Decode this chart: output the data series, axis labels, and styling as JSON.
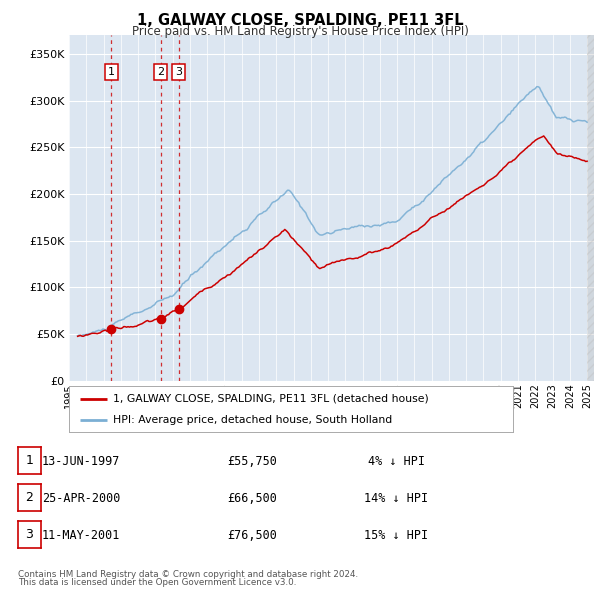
{
  "title": "1, GALWAY CLOSE, SPALDING, PE11 3FL",
  "subtitle": "Price paid vs. HM Land Registry's House Price Index (HPI)",
  "legend_line1": "1, GALWAY CLOSE, SPALDING, PE11 3FL (detached house)",
  "legend_line2": "HPI: Average price, detached house, South Holland",
  "transactions": [
    {
      "num": 1,
      "date": "13-JUN-1997",
      "price": 55750,
      "pct": "4%",
      "dir": "↓"
    },
    {
      "num": 2,
      "date": "25-APR-2000",
      "price": 66500,
      "pct": "14%",
      "dir": "↓"
    },
    {
      "num": 3,
      "date": "11-MAY-2001",
      "price": 76500,
      "pct": "15%",
      "dir": "↓"
    }
  ],
  "footer1": "Contains HM Land Registry data © Crown copyright and database right 2024.",
  "footer2": "This data is licensed under the Open Government Licence v3.0.",
  "hpi_color": "#7bafd4",
  "price_color": "#cc0000",
  "vline_color": "#cc0000",
  "plot_bg": "#dce6f1",
  "grid_color": "#ffffff",
  "ylim": [
    0,
    370000
  ],
  "yticks": [
    0,
    50000,
    100000,
    150000,
    200000,
    250000,
    300000,
    350000
  ],
  "xstart": 1995.4,
  "xend": 2025.4,
  "xticks": [
    1995,
    1996,
    1997,
    1998,
    1999,
    2000,
    2001,
    2002,
    2003,
    2004,
    2005,
    2006,
    2007,
    2008,
    2009,
    2010,
    2011,
    2012,
    2013,
    2014,
    2015,
    2016,
    2017,
    2018,
    2019,
    2020,
    2021,
    2022,
    2023,
    2024,
    2025
  ]
}
